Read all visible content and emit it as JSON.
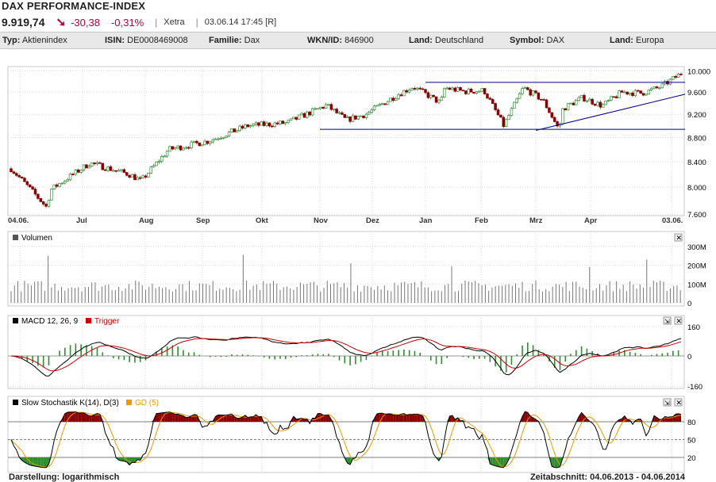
{
  "header": {
    "title": "DAX PERFORMANCE-INDEX",
    "price": "9.919,74",
    "arrow": "➘",
    "change": "-30,38",
    "change_pct": "-0,31%",
    "exchange": "Xetra",
    "timestamp": "03.06.14 17:45 [R]",
    "accent_color": "#b3003b"
  },
  "info": [
    {
      "label": "Typ:",
      "value": "Aktienindex"
    },
    {
      "label": "ISIN:",
      "value": "DE0008469008"
    },
    {
      "label": "Familie:",
      "value": "Dax"
    },
    {
      "label": "WKN/ID:",
      "value": "846900"
    },
    {
      "label": "Land:",
      "value": "Deutschland"
    },
    {
      "label": "Symbol:",
      "value": "DAX"
    },
    {
      "label": "Land:",
      "value": "Europa"
    }
  ],
  "footer": {
    "left": "Darstellung: logarithmisch",
    "right": "Zeitabschnitt: 04.06.2013 - 04.06.2014"
  },
  "chart_data": [
    {
      "type": "candlestick",
      "scale": "log",
      "ylim": [
        7600,
        10050
      ],
      "yticks": [
        "10.000",
        "9.600",
        "9.200",
        "8.800",
        "8.400",
        "8.000",
        "7.600"
      ],
      "ytick_values": [
        10000,
        9600,
        9200,
        8800,
        8400,
        8000,
        7600
      ],
      "xtick_labels": [
        "04.06.",
        "Jul",
        "Aug",
        "Sep",
        "Okt",
        "Nov",
        "Dez",
        "Jan",
        "Feb",
        "Mrz",
        "Apr",
        "03.06."
      ],
      "up_color": "#2f8f2f",
      "down_color": "#8b0000",
      "anchors_month_close": [
        [
          0,
          8290
        ],
        [
          0.9,
          7700
        ],
        [
          1,
          7960
        ],
        [
          2,
          8380
        ],
        [
          3,
          8200
        ],
        [
          3.3,
          8100
        ],
        [
          4,
          8600
        ],
        [
          5,
          8740
        ],
        [
          6,
          9000
        ],
        [
          7,
          9050
        ],
        [
          8,
          9360
        ],
        [
          8.5,
          9100
        ],
        [
          9,
          9200
        ],
        [
          9.8,
          9550
        ],
        [
          10.2,
          9700
        ],
        [
          10.9,
          9400
        ],
        [
          11,
          9680
        ],
        [
          11.5,
          9610
        ],
        [
          12,
          9630
        ],
        [
          12.5,
          9000
        ],
        [
          13,
          9680
        ],
        [
          13.5,
          9450
        ],
        [
          13.9,
          8930
        ],
        [
          14,
          9300
        ],
        [
          14.5,
          9500
        ],
        [
          15,
          9350
        ],
        [
          15.5,
          9600
        ],
        [
          16,
          9580
        ],
        [
          16.5,
          9700
        ],
        [
          17,
          9950
        ]
      ],
      "trendlines": [
        {
          "from": [
            "Jan",
            9780
          ],
          "to": [
            "03.06.",
            9780
          ],
          "color": "#00008b"
        },
        {
          "from": [
            "Nov",
            8940
          ],
          "to": [
            "03.06.",
            8940
          ],
          "color": "#00008b"
        },
        {
          "from": [
            "Mrz",
            8920
          ],
          "to": [
            "03.06.",
            9560
          ],
          "color": "#00008b"
        }
      ]
    },
    {
      "type": "bar",
      "title": "Volumen",
      "yticks": [
        "300M",
        "200M",
        "100M",
        "0"
      ],
      "ytick_values": [
        300,
        200,
        100,
        0
      ],
      "unit": "M",
      "typical_range": [
        60,
        120
      ],
      "spikes": [
        [
          0.95,
          250
        ],
        [
          5.85,
          255
        ],
        [
          8.6,
          210
        ],
        [
          11.2,
          195
        ],
        [
          14.7,
          190
        ],
        [
          16.1,
          230
        ]
      ]
    },
    {
      "type": "line",
      "title": "MACD 12, 26, 9",
      "legend": [
        {
          "name": "MACD 12, 26, 9",
          "color": "#000000"
        },
        {
          "name": "Trigger",
          "color": "#cc0000"
        }
      ],
      "yticks": [
        "160",
        "0",
        "-160"
      ],
      "ytick_values": [
        160,
        0,
        -160
      ],
      "histogram_color": "#2f8f2f"
    },
    {
      "type": "line",
      "title": "Slow Stochastik K(14), D(3)",
      "legend": [
        {
          "name": "Slow Stochastik K(14), D(3)",
          "color": "#000000"
        },
        {
          "name": "GD (5)",
          "color": "#e89a00"
        }
      ],
      "yticks": [
        "80",
        "50",
        "20"
      ],
      "ytick_values": [
        80,
        50,
        20
      ],
      "overbought_color": "#8b0000",
      "oversold_color": "#2f8f2f"
    }
  ],
  "icons": {
    "close": "close-icon",
    "expand": "expand-icon"
  }
}
